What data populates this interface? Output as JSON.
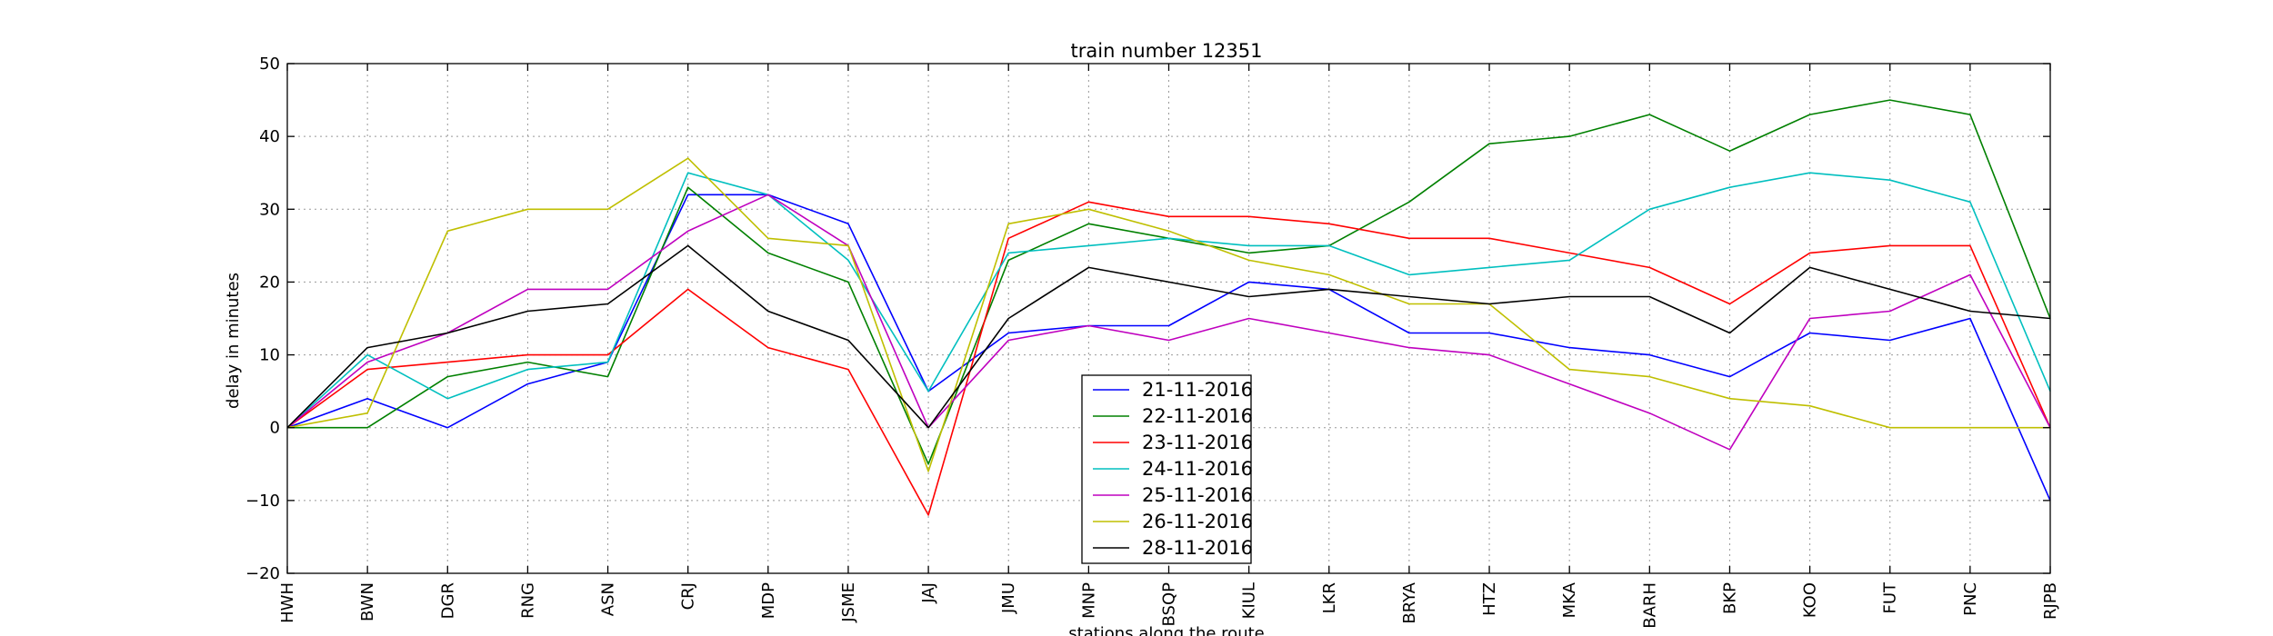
{
  "chart_data": {
    "type": "line",
    "title": "train number 12351",
    "xlabel": "stations along the route",
    "ylabel": "delay in minutes",
    "ylim": [
      -20,
      50
    ],
    "yticks": [
      -20,
      -10,
      0,
      10,
      20,
      30,
      40,
      50
    ],
    "grid": true,
    "legend_position": "lower-center",
    "categories": [
      "HWH",
      "BWN",
      "DGR",
      "RNG",
      "ASN",
      "CRJ",
      "MDP",
      "JSME",
      "JAJ",
      "JMU",
      "MNP",
      "BSQP",
      "KIUL",
      "LKR",
      "BRYA",
      "HTZ",
      "MKA",
      "BARH",
      "BKP",
      "KOO",
      "FUT",
      "PNC",
      "RJPB"
    ],
    "series": [
      {
        "name": "21-11-2016",
        "color": "#0000ff",
        "values": [
          0,
          4,
          0,
          6,
          9,
          32,
          32,
          28,
          5,
          13,
          14,
          14,
          20,
          19,
          13,
          13,
          11,
          10,
          7,
          13,
          12,
          15,
          -10
        ]
      },
      {
        "name": "22-11-2016",
        "color": "#008000",
        "values": [
          0,
          0,
          7,
          9,
          7,
          33,
          24,
          20,
          -5,
          23,
          28,
          26,
          24,
          25,
          31,
          39,
          40,
          43,
          38,
          43,
          45,
          43,
          15
        ]
      },
      {
        "name": "23-11-2016",
        "color": "#ff0000",
        "values": [
          0,
          8,
          9,
          10,
          10,
          19,
          11,
          8,
          -12,
          26,
          31,
          29,
          29,
          28,
          26,
          26,
          24,
          22,
          17,
          24,
          25,
          25,
          0
        ]
      },
      {
        "name": "24-11-2016",
        "color": "#00bfbf",
        "values": [
          0,
          10,
          4,
          8,
          9,
          35,
          32,
          23,
          5,
          24,
          25,
          26,
          25,
          25,
          21,
          22,
          23,
          30,
          33,
          35,
          34,
          31,
          5
        ]
      },
      {
        "name": "25-11-2016",
        "color": "#bf00bf",
        "values": [
          0,
          9,
          13,
          19,
          19,
          27,
          32,
          25,
          0,
          12,
          14,
          12,
          15,
          13,
          11,
          10,
          6,
          2,
          -3,
          15,
          16,
          21,
          0
        ]
      },
      {
        "name": "26-11-2016",
        "color": "#bfbf00",
        "values": [
          0,
          2,
          27,
          30,
          30,
          37,
          26,
          25,
          -6,
          28,
          30,
          27,
          23,
          21,
          17,
          17,
          8,
          7,
          4,
          3,
          0,
          0,
          0
        ]
      },
      {
        "name": "28-11-2016",
        "color": "#000000",
        "values": [
          0,
          11,
          13,
          16,
          17,
          25,
          16,
          12,
          0,
          15,
          22,
          20,
          18,
          19,
          18,
          17,
          18,
          18,
          13,
          22,
          19,
          16,
          15
        ]
      }
    ]
  }
}
